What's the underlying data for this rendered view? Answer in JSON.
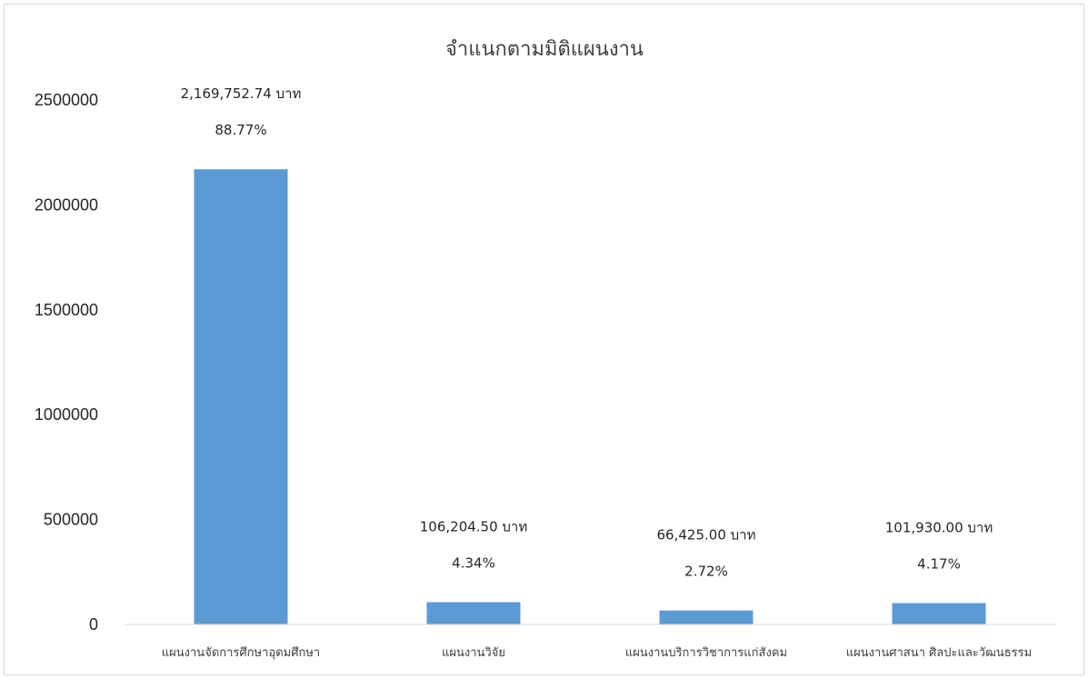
{
  "chart_data": {
    "type": "bar",
    "title": "จำแนกตามมิติแผนงาน",
    "xlabel": "",
    "ylabel": "",
    "categories": [
      "แผนงานจัดการศึกษาอุดมศึกษา",
      "แผนงานวิจัย",
      "แผนงานบริการวิชาการแก่สังคม",
      "แผนงานศาสนา ศิลปะและวัฒนธรรม"
    ],
    "values": [
      2169752.74,
      106204.5,
      66425.0,
      101930.0
    ],
    "value_labels": [
      "2,169,752.74 บาท",
      "106,204.50 บาท",
      "66,425.00 บาท",
      "101,930.00 บาท"
    ],
    "percent_labels": [
      "88.77%",
      "4.34%",
      "2.72%",
      "4.17%"
    ],
    "yticks": [
      "0",
      "500000",
      "1000000",
      "1500000",
      "2000000",
      "2500000"
    ],
    "ylim": [
      0,
      2500000
    ],
    "grid": false,
    "legend": "none",
    "bar_color": "#5b9bd5"
  }
}
